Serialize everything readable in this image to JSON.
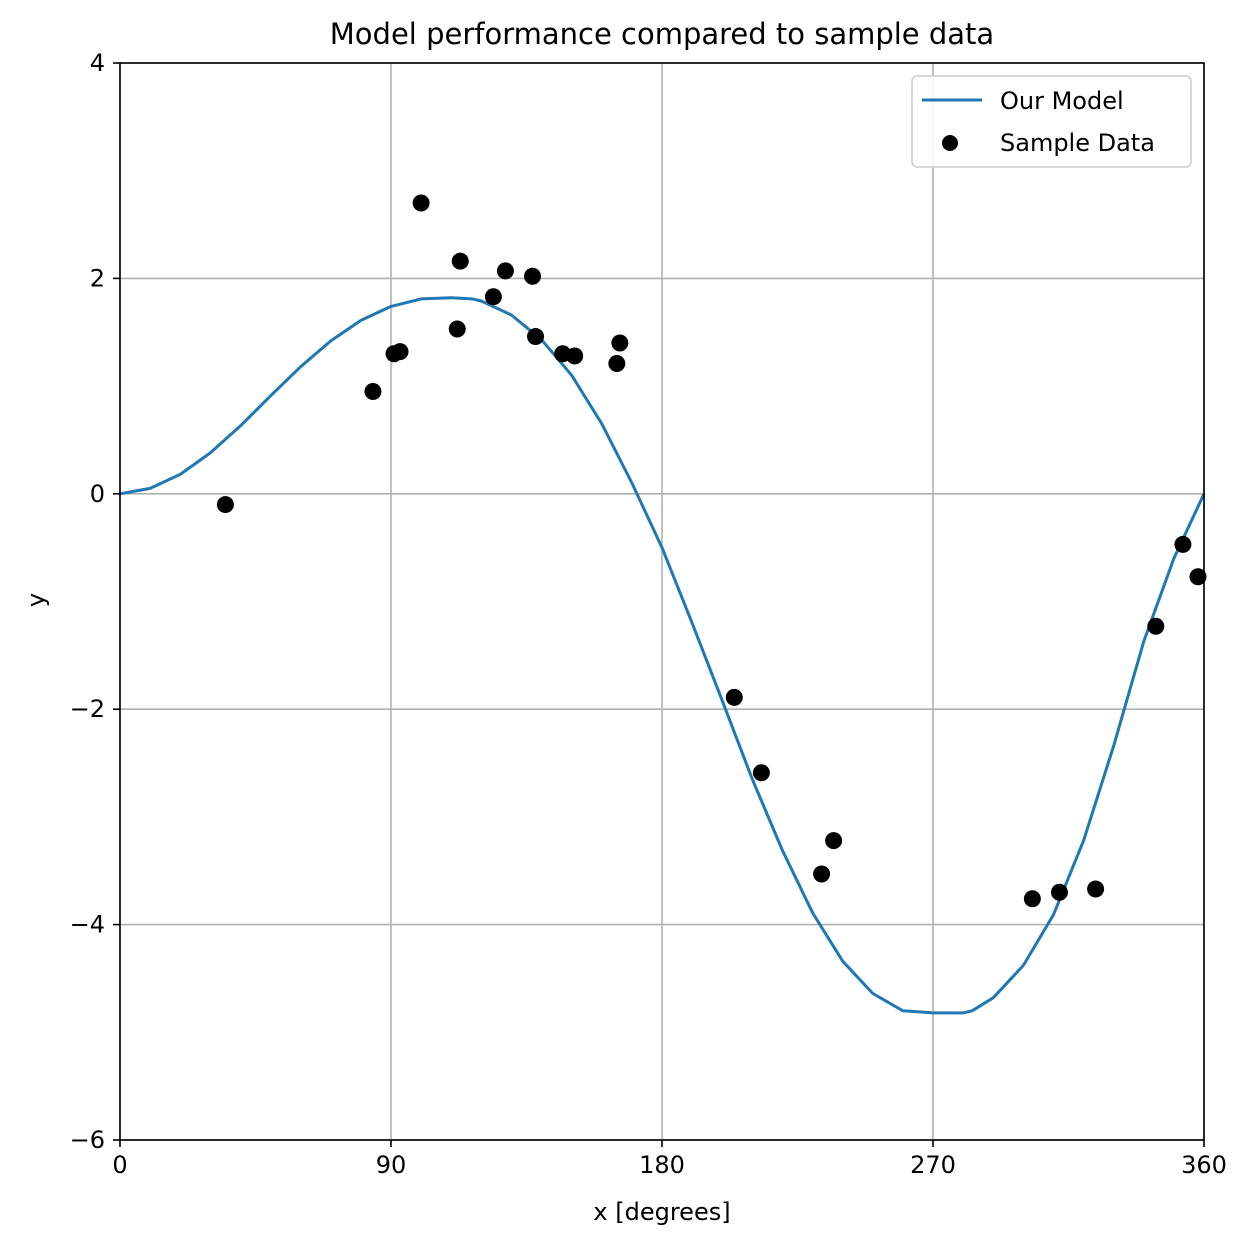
{
  "chart_data": {
    "type": "line",
    "title": "Model performance compared to sample data",
    "xlabel": "x [degrees]",
    "ylabel": "y",
    "xlim": [
      0,
      360
    ],
    "ylim": [
      -6,
      4
    ],
    "xticks": [
      0,
      90,
      180,
      270,
      360
    ],
    "yticks": [
      -6,
      -4,
      -2,
      0,
      2,
      4
    ],
    "xtick_labels": [
      "0",
      "90",
      "180",
      "270",
      "360"
    ],
    "ytick_labels": [
      "−6",
      "−4",
      "−2",
      "0",
      "2",
      "4"
    ],
    "grid": true,
    "legend_position": "top-right",
    "series": [
      {
        "name": "Our Model",
        "type": "line",
        "color": "#1f77b4",
        "x": [
          0,
          10,
          20,
          30,
          40,
          50,
          60,
          70,
          80,
          90,
          100,
          110,
          117,
          120,
          130,
          140,
          150,
          160,
          170,
          180,
          190,
          200,
          210,
          220,
          230,
          240,
          250,
          260,
          270,
          280,
          283,
          290,
          300,
          310,
          320,
          330,
          340,
          350,
          360
        ],
        "values": [
          0.0,
          0.05,
          0.18,
          0.38,
          0.63,
          0.91,
          1.18,
          1.42,
          1.61,
          1.74,
          1.81,
          1.82,
          1.81,
          1.79,
          1.66,
          1.43,
          1.1,
          0.65,
          0.1,
          -0.5,
          -1.2,
          -1.92,
          -2.65,
          -3.31,
          -3.89,
          -4.34,
          -4.64,
          -4.8,
          -4.82,
          -4.82,
          -4.8,
          -4.68,
          -4.38,
          -3.91,
          -3.22,
          -2.34,
          -1.37,
          -0.6,
          0.0
        ]
      },
      {
        "name": "Sample Data",
        "type": "scatter",
        "color": "#000000",
        "x": [
          35,
          84,
          91,
          93,
          100,
          112,
          113,
          124,
          128,
          137,
          138,
          147,
          151,
          165,
          166,
          204,
          213,
          233,
          237,
          303,
          312,
          324,
          344,
          353,
          358
        ],
        "values": [
          -0.1,
          0.95,
          1.3,
          1.32,
          2.7,
          1.53,
          2.16,
          1.83,
          2.07,
          2.02,
          1.46,
          1.3,
          1.28,
          1.21,
          1.4,
          -1.89,
          -2.59,
          -3.53,
          -3.22,
          -3.76,
          -3.7,
          -3.67,
          -1.23,
          -0.47,
          -0.77
        ]
      }
    ]
  }
}
